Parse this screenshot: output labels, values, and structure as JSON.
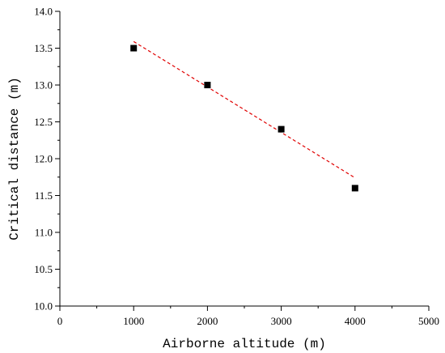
{
  "chart_data": {
    "type": "scatter",
    "title": "",
    "xlabel": "Airborne altitude (m)",
    "ylabel": "Critical distance (m)",
    "xlim": [
      0,
      5000
    ],
    "ylim": [
      10.0,
      14.0
    ],
    "x_ticks": [
      "0",
      "1000",
      "2000",
      "3000",
      "4000",
      "5000"
    ],
    "y_ticks": [
      "10.0",
      "10.5",
      "11.0",
      "11.5",
      "12.0",
      "12.5",
      "13.0",
      "13.5",
      "14.0"
    ],
    "grid": false,
    "series": [
      {
        "marker": "square",
        "color": "#000000",
        "points": [
          {
            "x": 1000,
            "y": 13.5
          },
          {
            "x": 2000,
            "y": 13.0
          },
          {
            "x": 3000,
            "y": 12.4
          },
          {
            "x": 4000,
            "y": 11.6
          }
        ]
      }
    ],
    "fit_line": {
      "style": "dashed",
      "color": "#e00000",
      "points": [
        {
          "x": 1000,
          "y": 13.59
        },
        {
          "x": 4000,
          "y": 11.74
        }
      ]
    }
  }
}
